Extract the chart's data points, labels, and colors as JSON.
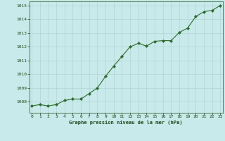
{
  "x": [
    0,
    1,
    2,
    3,
    4,
    5,
    6,
    7,
    8,
    9,
    10,
    11,
    12,
    13,
    14,
    15,
    16,
    17,
    18,
    19,
    20,
    21,
    22,
    23
  ],
  "y": [
    1007.7,
    1007.8,
    1007.7,
    1007.8,
    1008.1,
    1008.2,
    1008.2,
    1008.6,
    1009.0,
    1009.85,
    1010.6,
    1011.3,
    1012.0,
    1012.25,
    1012.05,
    1012.4,
    1012.45,
    1012.45,
    1013.05,
    1013.35,
    1014.2,
    1014.55,
    1014.65,
    1015.0
  ],
  "line_color": "#2d6a2d",
  "marker": "D",
  "marker_size": 2.0,
  "bg_color": "#c8eaea",
  "grid_color": "#aacece",
  "xlabel": "Graphe pression niveau de la mer (hPa)",
  "xlabel_color": "#1a4a1a",
  "tick_color": "#1a4a1a",
  "ylim": [
    1007.2,
    1015.3
  ],
  "yticks": [
    1008,
    1009,
    1010,
    1011,
    1012,
    1013,
    1014,
    1015
  ],
  "xlim": [
    -0.3,
    23.3
  ],
  "xticks": [
    0,
    1,
    2,
    3,
    4,
    5,
    6,
    7,
    8,
    9,
    10,
    11,
    12,
    13,
    14,
    15,
    16,
    17,
    18,
    19,
    20,
    21,
    22,
    23
  ]
}
